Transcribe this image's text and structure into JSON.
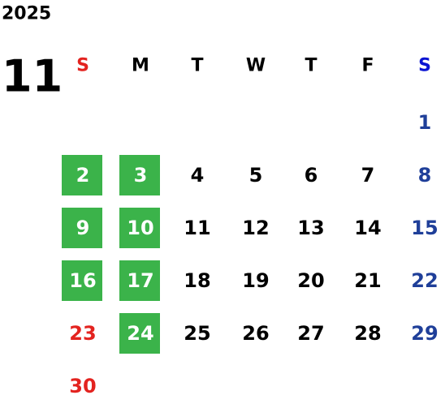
{
  "year": "2025",
  "month": "11",
  "weekdays": [
    "S",
    "M",
    "T",
    "W",
    "T",
    "F",
    "S"
  ],
  "colors": {
    "sunday": "#e3231f",
    "saturday": "#1f3f99",
    "sunday_header": "#e3231f",
    "saturday_header": "#0a14d2",
    "weekday": "#000000",
    "highlight": "#3bb34a",
    "highlight_text": "#ffffff"
  },
  "weeks": [
    [
      null,
      null,
      null,
      null,
      null,
      null,
      "1"
    ],
    [
      {
        "label": "2",
        "highlight": true
      },
      {
        "label": "3",
        "highlight": true
      },
      "4",
      "5",
      "6",
      "7",
      "8"
    ],
    [
      {
        "label": "9",
        "highlight": true
      },
      {
        "label": "10",
        "highlight": true
      },
      "11",
      "12",
      "13",
      "14",
      "15"
    ],
    [
      {
        "label": "16",
        "highlight": true
      },
      {
        "label": "17",
        "highlight": true
      },
      "18",
      "19",
      "20",
      "21",
      "22"
    ],
    [
      "23",
      {
        "label": "24",
        "highlight": true
      },
      "25",
      "26",
      "27",
      "28",
      "29"
    ],
    [
      "30",
      null,
      null,
      null,
      null,
      null,
      null
    ]
  ]
}
